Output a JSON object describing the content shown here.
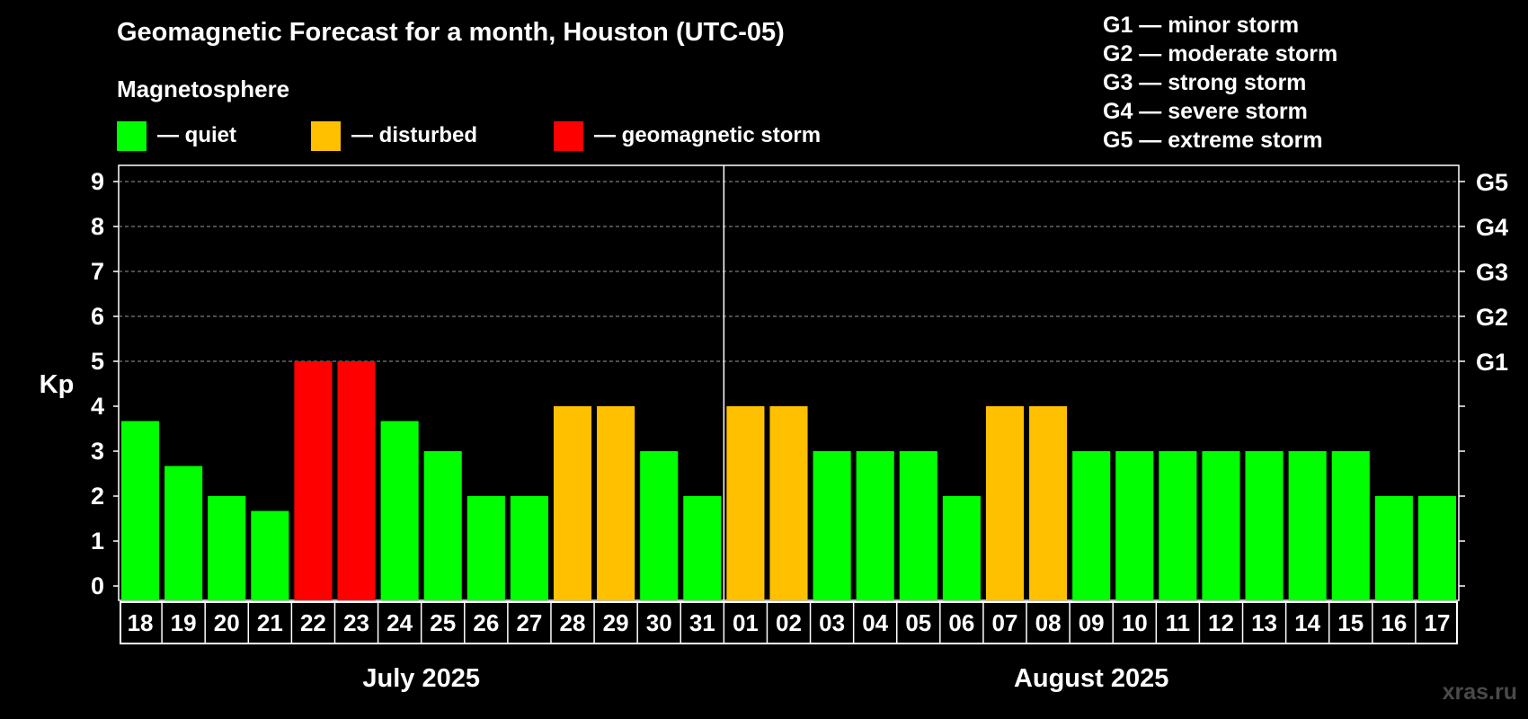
{
  "title": "Geomagnetic Forecast for a month, Houston (UTC-05)",
  "magnetosphere": {
    "title": "Magnetosphere",
    "legend": [
      {
        "label": "— quiet",
        "color": "#00ff00"
      },
      {
        "label": "— disturbed",
        "color": "#ffc000"
      },
      {
        "label": "— geomagnetic storm",
        "color": "#ff0000"
      }
    ]
  },
  "storm_scale": [
    "G1 — minor storm",
    "G2 — moderate storm",
    "G3 — strong storm",
    "G4 — severe storm",
    "G5 — extreme storm"
  ],
  "source": "xras.ru",
  "chart_data": {
    "type": "bar",
    "title": "Geomagnetic Forecast for a month, Houston (UTC-05)",
    "ylabel": "Kp",
    "ylim": [
      0,
      9
    ],
    "yticks": [
      "0",
      "1",
      "2",
      "3",
      "4",
      "5",
      "6",
      "7",
      "8",
      "9"
    ],
    "right_axis_labels": [
      {
        "kp": 5,
        "label": "G1"
      },
      {
        "kp": 6,
        "label": "G2"
      },
      {
        "kp": 7,
        "label": "G3"
      },
      {
        "kp": 8,
        "label": "G4"
      },
      {
        "kp": 9,
        "label": "G5"
      }
    ],
    "months": [
      {
        "label": "July 2025",
        "days": 14
      },
      {
        "label": "August 2025",
        "days": 17
      }
    ],
    "categories": [
      "18",
      "19",
      "20",
      "21",
      "22",
      "23",
      "24",
      "25",
      "26",
      "27",
      "28",
      "29",
      "30",
      "31",
      "01",
      "02",
      "03",
      "04",
      "05",
      "06",
      "07",
      "08",
      "09",
      "10",
      "11",
      "12",
      "13",
      "14",
      "15",
      "16",
      "17"
    ],
    "values": [
      3.67,
      2.67,
      2,
      1.67,
      5,
      5,
      3.67,
      3,
      2,
      2,
      4,
      4,
      3,
      2,
      4,
      4,
      3,
      3,
      3,
      2,
      4,
      4,
      3,
      3,
      3,
      3,
      3,
      3,
      3,
      2,
      2
    ],
    "status": [
      "quiet",
      "quiet",
      "quiet",
      "quiet",
      "storm",
      "storm",
      "quiet",
      "quiet",
      "quiet",
      "quiet",
      "disturbed",
      "disturbed",
      "quiet",
      "quiet",
      "disturbed",
      "disturbed",
      "quiet",
      "quiet",
      "quiet",
      "quiet",
      "disturbed",
      "disturbed",
      "quiet",
      "quiet",
      "quiet",
      "quiet",
      "quiet",
      "quiet",
      "quiet",
      "quiet",
      "quiet"
    ],
    "status_colors": {
      "quiet": "#00ff00",
      "disturbed": "#ffc000",
      "storm": "#ff0000"
    }
  }
}
